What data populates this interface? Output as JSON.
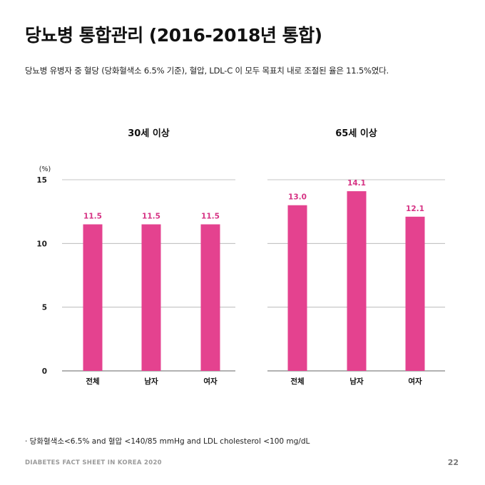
{
  "title": "당뇨병 통합관리 (2016-2018년 통합)",
  "subtitle": "당뇨병 유병자 중 혈당 (당화혈색소 6.5% 기준), 혈압, LDL-C 이 모두 목표치 내로 조절된 율은 11.5%였다.",
  "footnote": "· 당화혈색소<6.5% and 혈압 <140/85 mmHg and LDL cholesterol <100 mg/dL",
  "footer": "DIABETES FACT SHEET IN KOREA 2020",
  "page_number": "22",
  "colors": {
    "bar": "#e4428f",
    "label": "#d63384",
    "grid": "#b0b0b0",
    "axis": "#666666"
  },
  "chart_data": [
    {
      "type": "bar",
      "title": "30세 이상",
      "ylabel": "(%)",
      "ylim": [
        0,
        15
      ],
      "yticks": [
        0,
        5,
        10,
        15
      ],
      "categories": [
        "전체",
        "남자",
        "여자"
      ],
      "values": [
        11.5,
        11.5,
        11.5
      ],
      "value_labels": [
        "11.5",
        "11.5",
        "11.5"
      ]
    },
    {
      "type": "bar",
      "title": "65세 이상",
      "ylim": [
        0,
        15
      ],
      "yticks": [
        0,
        5,
        10,
        15
      ],
      "categories": [
        "전체",
        "남자",
        "여자"
      ],
      "values": [
        13.0,
        14.1,
        12.1
      ],
      "value_labels": [
        "13.0",
        "14.1",
        "12.1"
      ]
    }
  ]
}
